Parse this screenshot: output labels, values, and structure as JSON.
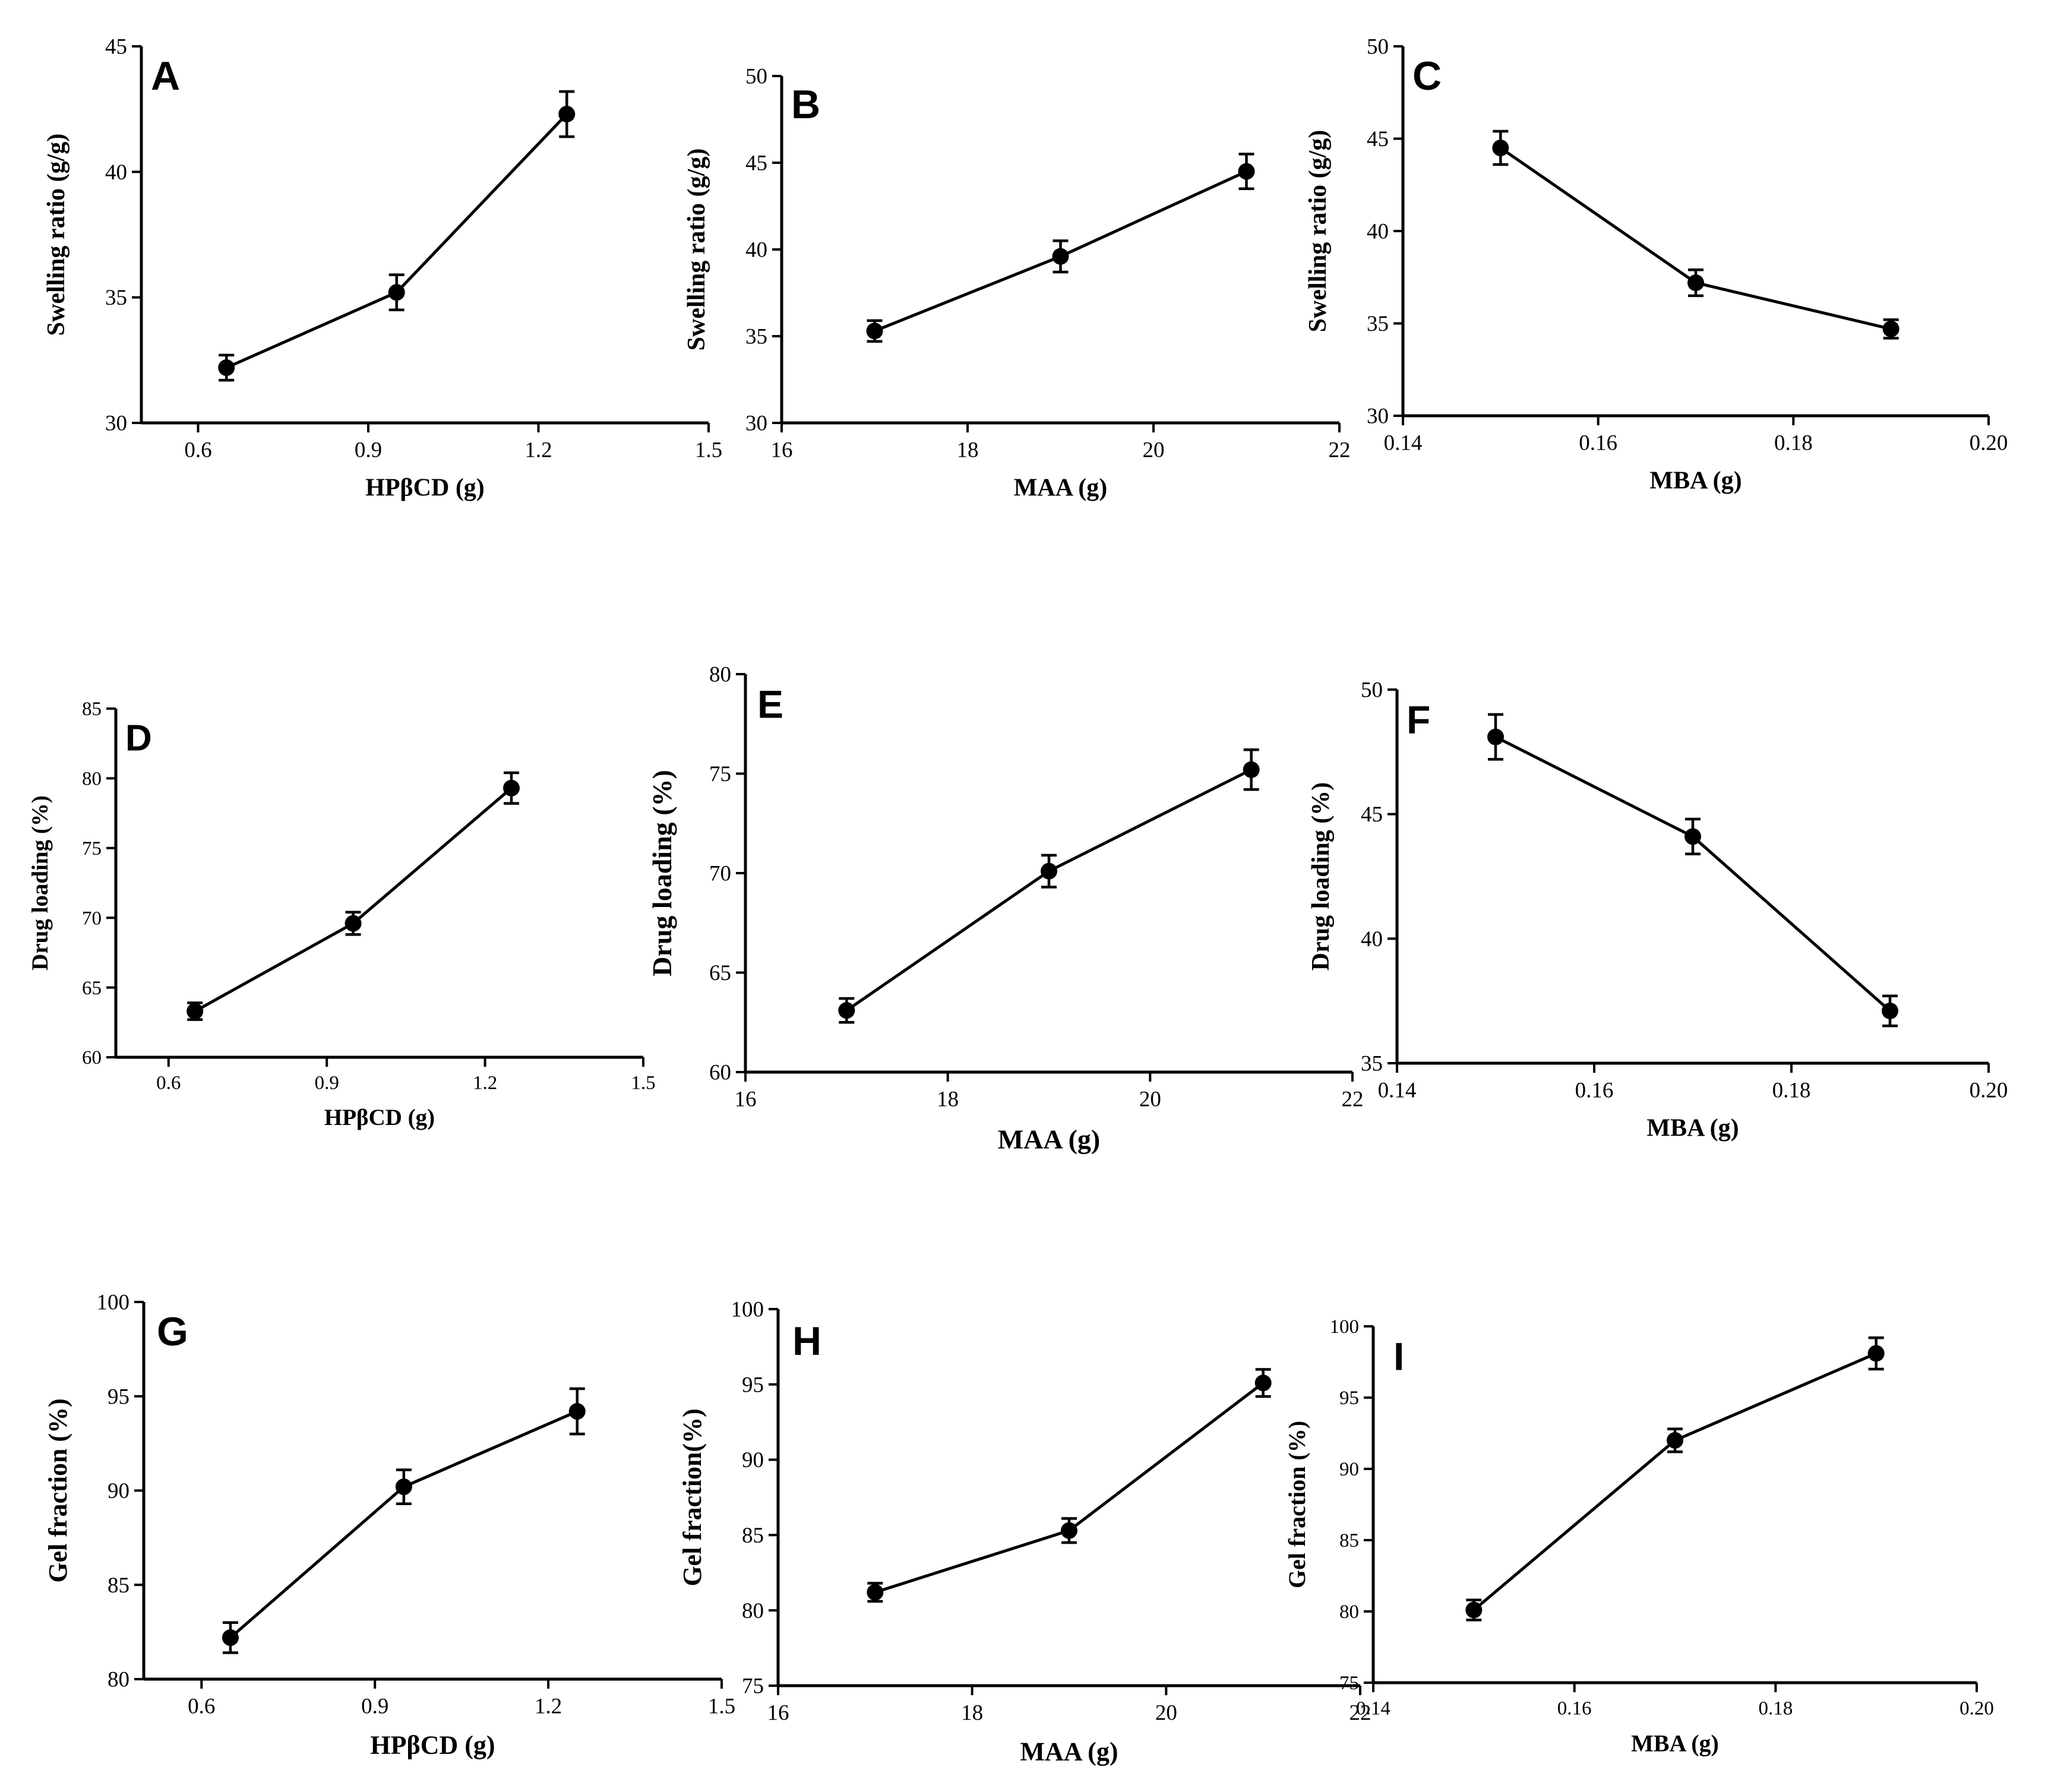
{
  "chart_data": [
    {
      "panel": "A",
      "type": "line",
      "xlabel": "HPβCD (g)",
      "ylabel": "Swelling ratio (g/g)",
      "xlim": [
        0.5,
        1.5
      ],
      "ylim": [
        30,
        45
      ],
      "xticks": [
        0.6,
        0.9,
        1.2,
        1.5
      ],
      "xtick_labels": [
        "0.6",
        "0.9",
        "1.2",
        "1.5"
      ],
      "yticks": [
        30,
        35,
        40,
        45
      ],
      "ytick_labels": [
        "30",
        "35",
        "40",
        "45"
      ],
      "x": [
        0.65,
        0.95,
        1.25
      ],
      "y": [
        32.2,
        35.2,
        42.3
      ],
      "err": [
        0.5,
        0.7,
        0.9
      ]
    },
    {
      "panel": "B",
      "type": "line",
      "xlabel": "MAA (g)",
      "ylabel": "Swelling ratio (g/g)",
      "xlim": [
        16,
        22
      ],
      "ylim": [
        30,
        50
      ],
      "xticks": [
        16,
        18,
        20,
        22
      ],
      "xtick_labels": [
        "16",
        "18",
        "20",
        "22"
      ],
      "yticks": [
        30,
        35,
        40,
        45,
        50
      ],
      "ytick_labels": [
        "30",
        "35",
        "40",
        "45",
        "50"
      ],
      "x": [
        17,
        19,
        21
      ],
      "y": [
        35.3,
        39.6,
        44.5
      ],
      "err": [
        0.6,
        0.9,
        1.0
      ]
    },
    {
      "panel": "C",
      "type": "line",
      "xlabel": "MBA (g)",
      "ylabel": "Swelling ratio (g/g)",
      "xlim": [
        0.14,
        0.2
      ],
      "ylim": [
        30,
        50
      ],
      "xticks": [
        0.14,
        0.16,
        0.18,
        0.2
      ],
      "xtick_labels": [
        "0.14",
        "0.16",
        "0.18",
        "0.20"
      ],
      "yticks": [
        30,
        35,
        40,
        45,
        50
      ],
      "ytick_labels": [
        "30",
        "35",
        "40",
        "45",
        "50"
      ],
      "x": [
        0.15,
        0.17,
        0.19
      ],
      "y": [
        44.5,
        37.2,
        34.7
      ],
      "err": [
        0.9,
        0.7,
        0.5
      ]
    },
    {
      "panel": "D",
      "type": "line",
      "xlabel": "HPβCD (g)",
      "ylabel": "Drug loading (%)",
      "xlim": [
        0.5,
        1.5
      ],
      "ylim": [
        60,
        85
      ],
      "xticks": [
        0.6,
        0.9,
        1.2,
        1.5
      ],
      "xtick_labels": [
        "0.6",
        "0.9",
        "1.2",
        "1.5"
      ],
      "yticks": [
        60,
        65,
        70,
        75,
        80,
        85
      ],
      "ytick_labels": [
        "60",
        "65",
        "70",
        "75",
        "80",
        "85"
      ],
      "x": [
        0.65,
        0.95,
        1.25
      ],
      "y": [
        63.3,
        69.6,
        79.3
      ],
      "err": [
        0.6,
        0.8,
        1.1
      ]
    },
    {
      "panel": "E",
      "type": "line",
      "xlabel": "MAA (g)",
      "ylabel": "Drug loading (%)",
      "xlim": [
        16,
        22
      ],
      "ylim": [
        60,
        80
      ],
      "xticks": [
        16,
        18,
        20,
        22
      ],
      "xtick_labels": [
        "16",
        "18",
        "20",
        "22"
      ],
      "yticks": [
        60,
        65,
        70,
        75,
        80
      ],
      "ytick_labels": [
        "60",
        "65",
        "70",
        "75",
        "80"
      ],
      "x": [
        17,
        19,
        21
      ],
      "y": [
        63.1,
        70.1,
        75.2
      ],
      "err": [
        0.6,
        0.8,
        1.0
      ]
    },
    {
      "panel": "F",
      "type": "line",
      "xlabel": "MBA (g)",
      "ylabel": "Drug loading (%)",
      "xlim": [
        0.14,
        0.2
      ],
      "ylim": [
        35,
        50
      ],
      "xticks": [
        0.14,
        0.16,
        0.18,
        0.2
      ],
      "xtick_labels": [
        "0.14",
        "0.16",
        "0.18",
        "0.20"
      ],
      "yticks": [
        35,
        40,
        45,
        50
      ],
      "ytick_labels": [
        "35",
        "40",
        "45",
        "50"
      ],
      "x": [
        0.15,
        0.17,
        0.19
      ],
      "y": [
        48.1,
        44.1,
        37.1
      ],
      "err": [
        0.9,
        0.7,
        0.6
      ]
    },
    {
      "panel": "G",
      "type": "line",
      "xlabel": "HPβCD (g)",
      "ylabel": "Gel fraction (%)",
      "xlim": [
        0.5,
        1.5
      ],
      "ylim": [
        80,
        100
      ],
      "xticks": [
        0.6,
        0.9,
        1.2,
        1.5
      ],
      "xtick_labels": [
        "0.6",
        "0.9",
        "1.2",
        "1.5"
      ],
      "yticks": [
        80,
        85,
        90,
        95,
        100
      ],
      "ytick_labels": [
        "80",
        "85",
        "90",
        "95",
        "100"
      ],
      "x": [
        0.65,
        0.95,
        1.25
      ],
      "y": [
        82.2,
        90.2,
        94.2
      ],
      "err": [
        0.8,
        0.9,
        1.2
      ]
    },
    {
      "panel": "H",
      "type": "line",
      "xlabel": "MAA (g)",
      "ylabel": "Gel fraction(%)",
      "xlim": [
        16,
        22
      ],
      "ylim": [
        75,
        100
      ],
      "xticks": [
        16,
        18,
        20,
        22
      ],
      "xtick_labels": [
        "16",
        "18",
        "20",
        "22"
      ],
      "yticks": [
        75,
        80,
        85,
        90,
        95,
        100
      ],
      "ytick_labels": [
        "75",
        "80",
        "85",
        "90",
        "95",
        "100"
      ],
      "x": [
        17,
        19,
        21
      ],
      "y": [
        81.2,
        85.3,
        95.1
      ],
      "err": [
        0.6,
        0.8,
        0.9
      ]
    },
    {
      "panel": "I",
      "type": "line",
      "xlabel": "MBA (g)",
      "ylabel": "Gel fraction (%)",
      "xlim": [
        0.14,
        0.2
      ],
      "ylim": [
        75,
        100
      ],
      "xticks": [
        0.14,
        0.16,
        0.18,
        0.2
      ],
      "xtick_labels": [
        "0.14",
        "0.16",
        "0.18",
        "0.20"
      ],
      "yticks": [
        75,
        80,
        85,
        90,
        95,
        100
      ],
      "ytick_labels": [
        "75",
        "80",
        "85",
        "90",
        "95",
        "100"
      ],
      "x": [
        0.15,
        0.17,
        0.19
      ],
      "y": [
        80.1,
        92.0,
        98.1
      ],
      "err": [
        0.7,
        0.8,
        1.1
      ]
    }
  ]
}
